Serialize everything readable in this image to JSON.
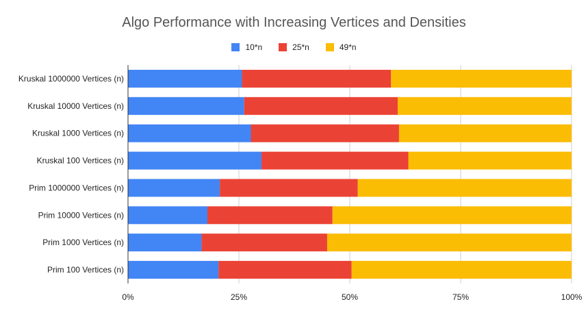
{
  "chart_data": {
    "type": "bar",
    "orientation": "horizontal",
    "stacked": "percent",
    "title": "Algo Performance with Increasing Vertices and Densities",
    "categories": [
      "Kruskal 1000000 Vertices (n)",
      "Kruskal 10000 Vertices (n)",
      "Kruskal 1000 Vertices (n)",
      "Kruskal 100 Vertices (n)",
      "Prim 1000000 Vertices (n)",
      "Prim 10000 Vertices (n)",
      "Prim 1000 Vertices (n)",
      "Prim 100 Vertices (n)"
    ],
    "series": [
      {
        "name": "10*n",
        "color": "#4285f4",
        "values": [
          25.7,
          26.2,
          27.7,
          30.1,
          20.7,
          17.9,
          16.6,
          20.4
        ]
      },
      {
        "name": "25*n",
        "color": "#ea4335",
        "values": [
          33.6,
          34.6,
          33.4,
          33.1,
          31.1,
          28.2,
          28.3,
          30.0
        ]
      },
      {
        "name": "49*n",
        "color": "#fbbc04",
        "values": [
          40.7,
          39.2,
          38.9,
          36.8,
          48.2,
          53.9,
          55.1,
          49.6
        ]
      }
    ],
    "x_ticks": [
      "0%",
      "25%",
      "50%",
      "75%",
      "100%"
    ],
    "xlim": [
      0,
      100
    ],
    "grid": true,
    "legend_position": "top"
  }
}
